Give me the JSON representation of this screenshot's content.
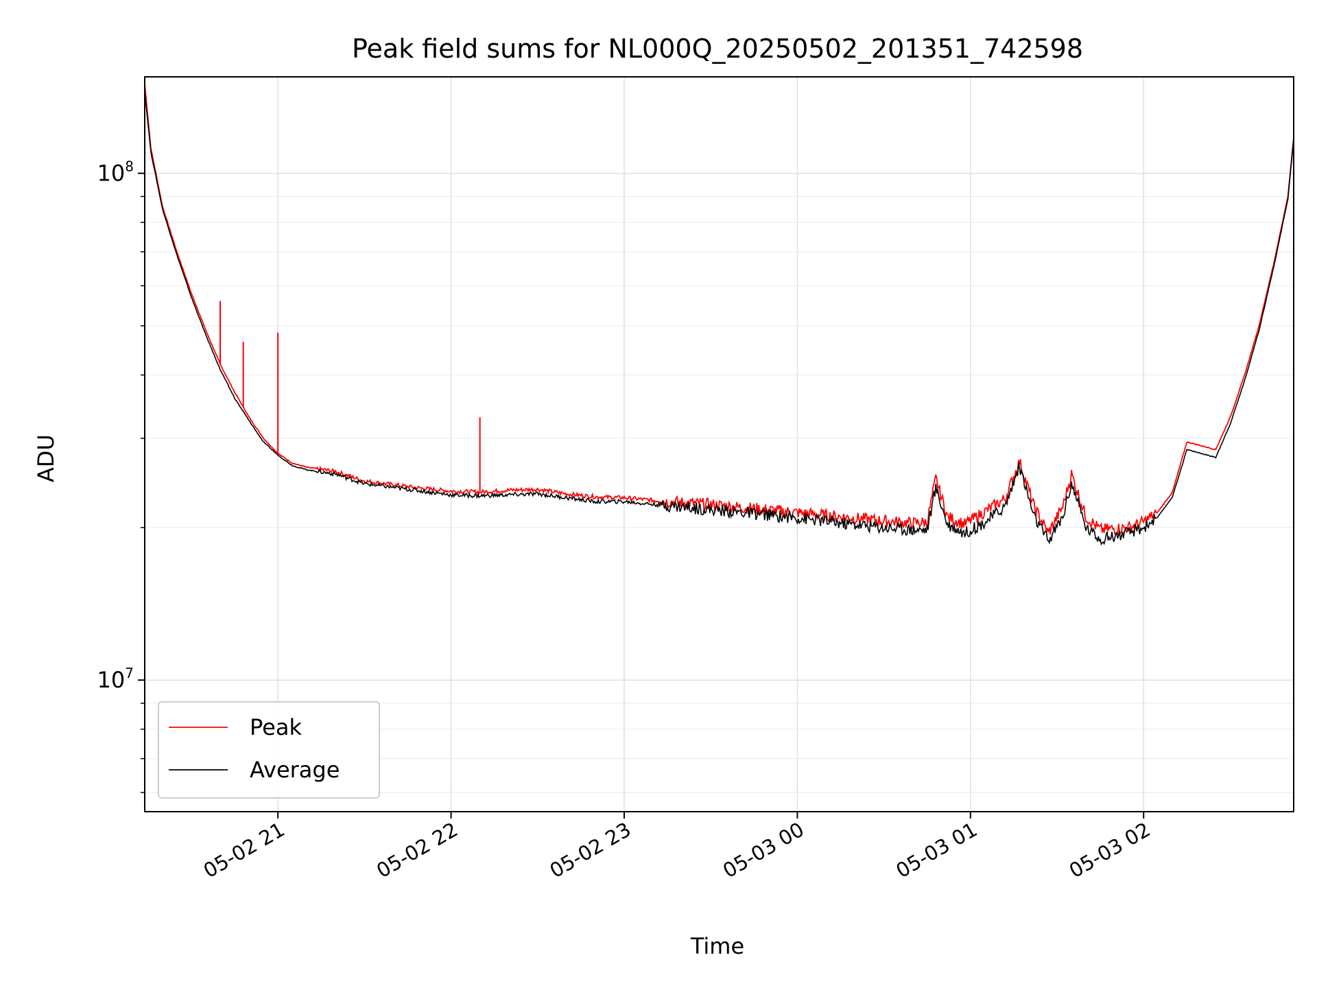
{
  "chart_data": {
    "type": "line",
    "title": "Peak field sums for NL000Q_20250502_201351_742598",
    "xlabel": "Time",
    "ylabel": "ADU",
    "yscale": "log",
    "ylim": [
      5500000,
      155000000
    ],
    "xlim": [
      "2025-05-02 20:13:51",
      "2025-05-03 02:52:00"
    ],
    "grid": true,
    "legend_position": "lower-left",
    "xticks": [
      {
        "time": "2025-05-02 21:00",
        "label": "05-02 21"
      },
      {
        "time": "2025-05-02 22:00",
        "label": "05-02 22"
      },
      {
        "time": "2025-05-02 23:00",
        "label": "05-02 23"
      },
      {
        "time": "2025-05-03 00:00",
        "label": "05-03 00"
      },
      {
        "time": "2025-05-03 01:00",
        "label": "05-03 01"
      },
      {
        "time": "2025-05-03 02:00",
        "label": "05-03 02"
      }
    ],
    "yticks": [
      {
        "value": 10000000,
        "base": "10",
        "exp": "7"
      },
      {
        "value": 100000000,
        "base": "10",
        "exp": "8"
      }
    ],
    "series": [
      {
        "name": "Peak",
        "color": "#ff0000",
        "x": [
          "2025-05-02 20:13:51",
          "2025-05-02 20:16",
          "2025-05-02 20:20",
          "2025-05-02 20:25",
          "2025-05-02 20:30",
          "2025-05-02 20:35",
          "2025-05-02 20:40",
          "2025-05-02 20:45",
          "2025-05-02 20:50",
          "2025-05-02 20:55",
          "2025-05-02 21:00",
          "2025-05-02 21:05",
          "2025-05-02 21:10",
          "2025-05-02 21:20",
          "2025-05-02 21:30",
          "2025-05-02 21:40",
          "2025-05-02 21:50",
          "2025-05-02 22:00",
          "2025-05-02 22:10",
          "2025-05-02 22:20",
          "2025-05-02 22:30",
          "2025-05-02 22:40",
          "2025-05-02 22:50",
          "2025-05-02 23:00",
          "2025-05-02 23:15",
          "2025-05-02 23:30",
          "2025-05-02 23:45",
          "2025-05-03 00:00",
          "2025-05-03 00:15",
          "2025-05-03 00:30",
          "2025-05-03 00:40",
          "2025-05-03 00:45",
          "2025-05-03 00:48",
          "2025-05-03 00:52",
          "2025-05-03 00:58",
          "2025-05-03 01:05",
          "2025-05-03 01:12",
          "2025-05-03 01:17",
          "2025-05-03 01:22",
          "2025-05-03 01:27",
          "2025-05-03 01:32",
          "2025-05-03 01:35",
          "2025-05-03 01:40",
          "2025-05-03 01:45",
          "2025-05-03 01:55",
          "2025-05-03 02:00",
          "2025-05-03 02:05",
          "2025-05-03 02:10",
          "2025-05-03 02:15",
          "2025-05-03 02:20",
          "2025-05-03 02:25",
          "2025-05-03 02:30",
          "2025-05-03 02:35",
          "2025-05-03 02:40",
          "2025-05-03 02:45",
          "2025-05-03 02:50",
          "2025-05-03 02:52"
        ],
        "values": [
          150000000,
          112000000,
          86000000,
          70000000,
          58000000,
          49000000,
          42000000,
          37000000,
          33000000,
          30000000,
          28000000,
          26800000,
          26300000,
          25800000,
          24700000,
          24300000,
          23900000,
          23600000,
          23500000,
          23700000,
          23800000,
          23300000,
          23000000,
          22900000,
          22500000,
          22200000,
          21800000,
          21400000,
          21000000,
          20600000,
          20400000,
          20500000,
          25000000,
          21000000,
          20300000,
          21500000,
          22800000,
          27000000,
          22000000,
          19500000,
          22000000,
          25500000,
          21000000,
          19800000,
          20000000,
          20500000,
          21500000,
          23500000,
          29500000,
          29000000,
          28500000,
          33000000,
          40000000,
          50000000,
          66000000,
          90000000,
          118000000
        ],
        "spikes": [
          {
            "x": "2025-05-02 20:40",
            "value": 56000000
          },
          {
            "x": "2025-05-02 20:48",
            "value": 46500000
          },
          {
            "x": "2025-05-02 21:00",
            "value": 48500000
          },
          {
            "x": "2025-05-02 22:10",
            "value": 33000000
          }
        ]
      },
      {
        "name": "Average",
        "color": "#000000",
        "x": [
          "2025-05-02 20:13:51",
          "2025-05-02 20:16",
          "2025-05-02 20:20",
          "2025-05-02 20:25",
          "2025-05-02 20:30",
          "2025-05-02 20:35",
          "2025-05-02 20:40",
          "2025-05-02 20:45",
          "2025-05-02 20:50",
          "2025-05-02 20:55",
          "2025-05-02 21:00",
          "2025-05-02 21:05",
          "2025-05-02 21:10",
          "2025-05-02 21:20",
          "2025-05-02 21:30",
          "2025-05-02 21:40",
          "2025-05-02 21:50",
          "2025-05-02 22:00",
          "2025-05-02 22:10",
          "2025-05-02 22:20",
          "2025-05-02 22:30",
          "2025-05-02 22:40",
          "2025-05-02 22:50",
          "2025-05-02 23:00",
          "2025-05-02 23:15",
          "2025-05-02 23:30",
          "2025-05-02 23:45",
          "2025-05-03 00:00",
          "2025-05-03 00:15",
          "2025-05-03 00:30",
          "2025-05-03 00:40",
          "2025-05-03 00:45",
          "2025-05-03 00:48",
          "2025-05-03 00:52",
          "2025-05-03 00:58",
          "2025-05-03 01:05",
          "2025-05-03 01:12",
          "2025-05-03 01:17",
          "2025-05-03 01:22",
          "2025-05-03 01:27",
          "2025-05-03 01:32",
          "2025-05-03 01:35",
          "2025-05-03 01:40",
          "2025-05-03 01:45",
          "2025-05-03 01:55",
          "2025-05-03 02:00",
          "2025-05-03 02:05",
          "2025-05-03 02:10",
          "2025-05-03 02:15",
          "2025-05-03 02:20",
          "2025-05-03 02:25",
          "2025-05-03 02:30",
          "2025-05-03 02:35",
          "2025-05-03 02:40",
          "2025-05-03 02:45",
          "2025-05-03 02:50",
          "2025-05-03 02:52"
        ],
        "values": [
          145000000,
          110000000,
          85000000,
          69000000,
          57000000,
          48000000,
          41000000,
          36000000,
          32500000,
          29500000,
          27800000,
          26500000,
          26000000,
          25500000,
          24400000,
          24000000,
          23600000,
          23200000,
          23100000,
          23200000,
          23300000,
          22900000,
          22500000,
          22500000,
          22100000,
          21700000,
          21300000,
          20900000,
          20400000,
          20000000,
          19800000,
          19800000,
          24000000,
          20300000,
          19500000,
          20500000,
          22000000,
          26500000,
          21000000,
          18800000,
          21000000,
          24500000,
          20000000,
          19000000,
          19500000,
          20000000,
          21000000,
          23000000,
          28500000,
          28000000,
          27500000,
          32000000,
          39000000,
          49000000,
          65000000,
          89000000,
          117000000
        ]
      }
    ]
  }
}
